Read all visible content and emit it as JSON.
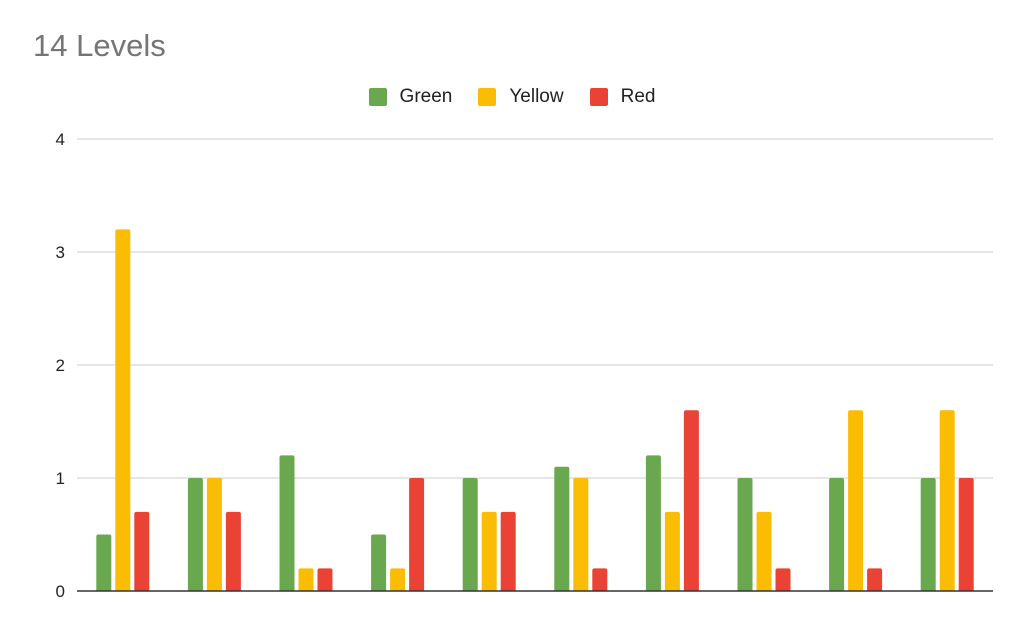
{
  "colors": {
    "grid": "#cccccc",
    "axis": "#333333"
  },
  "chart_data": {
    "type": "bar",
    "title": "14 Levels",
    "xlabel": "",
    "ylabel": "",
    "ylim": [
      0,
      4
    ],
    "yticks": [
      "0",
      "1",
      "2",
      "3",
      "4"
    ],
    "grid": true,
    "legend_position": "top",
    "categories": [
      "",
      "",
      "",
      "",
      "",
      "",
      "",
      "",
      "",
      ""
    ],
    "series": [
      {
        "name": "Green",
        "color": "#6aa84f",
        "values": [
          0.5,
          1,
          1.2,
          0.5,
          1,
          1.1,
          1.2,
          1,
          1,
          1
        ]
      },
      {
        "name": "Yellow",
        "color": "#fbbc04",
        "values": [
          3.2,
          1,
          0.2,
          0.2,
          0.7,
          1,
          0.7,
          0.7,
          1.6,
          1.6
        ]
      },
      {
        "name": "Red",
        "color": "#ea4335",
        "values": [
          0.7,
          0.7,
          0.2,
          1,
          0.7,
          0.2,
          1.6,
          0.2,
          0.2,
          1
        ]
      }
    ]
  }
}
